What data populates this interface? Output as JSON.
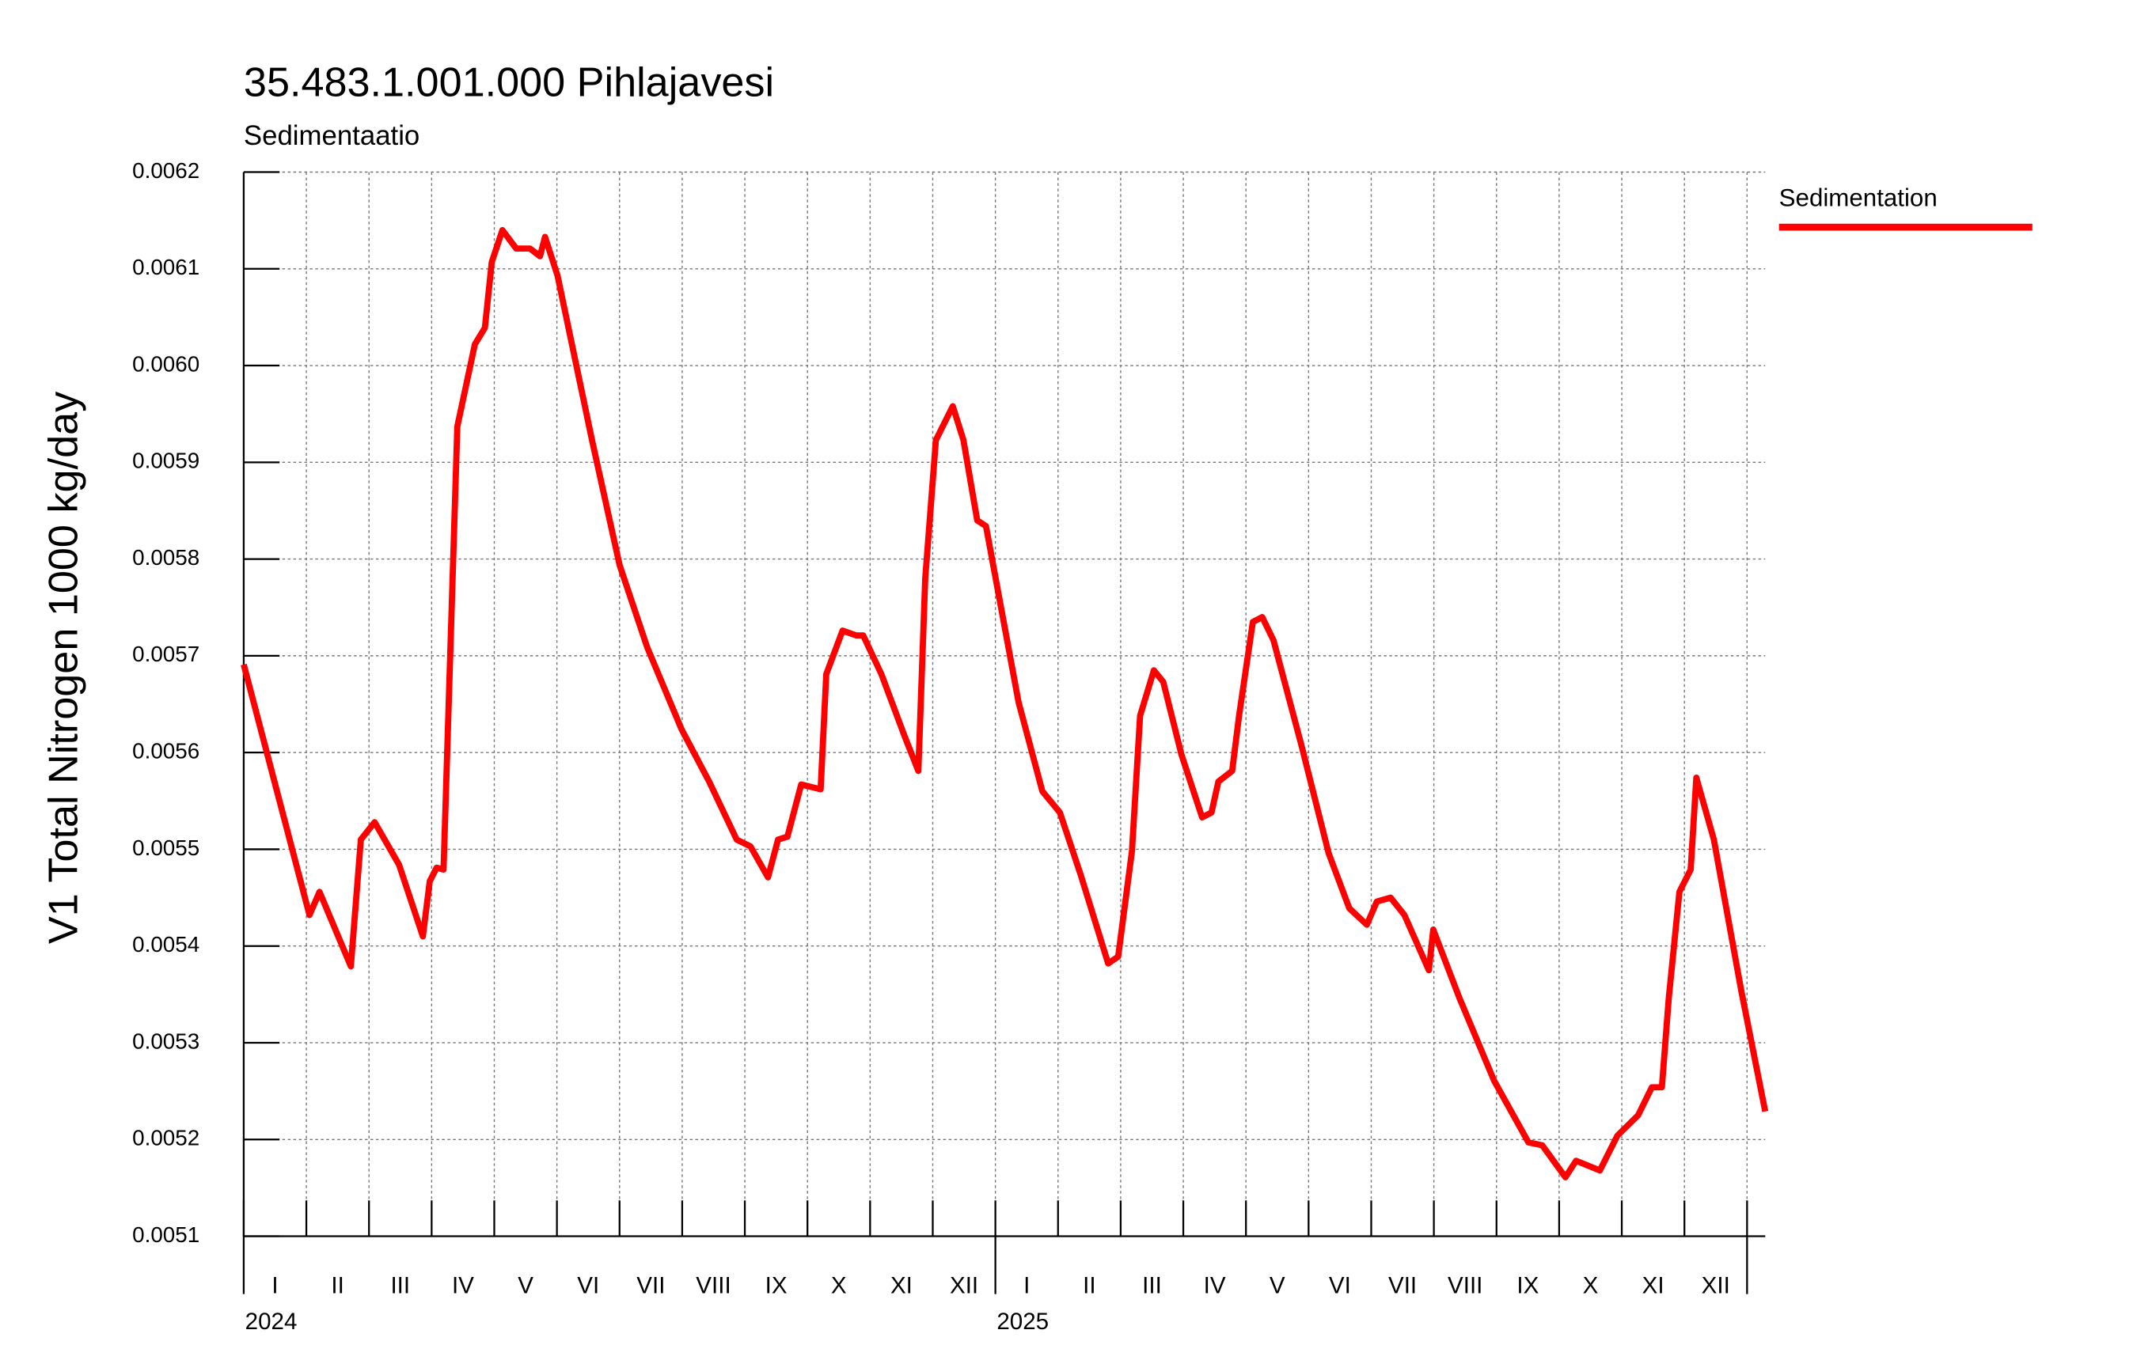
{
  "chart_data": {
    "type": "line",
    "title": "35.483.1.001.000 Pihlajavesi",
    "subtitle": "Sedimentaatio",
    "y_label": "V1 Total Nitrogen 1000 kg/day",
    "legend_position": "top-right-outside",
    "grid": true,
    "xlim": [
      0,
      24.29
    ],
    "xticks": [
      0,
      1,
      2,
      3,
      4,
      5,
      6,
      7,
      8,
      9,
      10,
      11,
      12,
      13,
      14,
      15,
      16,
      17,
      18,
      19,
      20,
      21,
      22,
      23,
      24
    ],
    "month_labels": [
      "I",
      "II",
      "III",
      "IV",
      "V",
      "VI",
      "VII",
      "VIII",
      "IX",
      "X",
      "XI",
      "XII",
      "I",
      "II",
      "III",
      "IV",
      "V",
      "VI",
      "VII",
      "VIII",
      "IX",
      "X",
      "XI",
      "XII"
    ],
    "year_labels": [
      {
        "value": 0,
        "label": "2024"
      },
      {
        "value": 12,
        "label": "2025"
      }
    ],
    "ylim": [
      0.0051,
      0.0062
    ],
    "yticks": [
      0.0051,
      0.0052,
      0.0053,
      0.0054,
      0.0055,
      0.0056,
      0.0057,
      0.0058,
      0.0059,
      {
        "value": 0.006,
        "label": "0.0060"
      },
      0.0061,
      0.0062
    ],
    "x": [
      0,
      1.05,
      1.21,
      1.71,
      1.87,
      2.09,
      2.48,
      2.86,
      2.97,
      3.08,
      3.19,
      3.41,
      3.69,
      3.85,
      3.96,
      4.13,
      4.35,
      4.57,
      4.73,
      4.81,
      5.01,
      5.56,
      6.0,
      6.44,
      6.99,
      7.43,
      7.87,
      8.09,
      8.37,
      8.53,
      8.68,
      8.9,
      9.21,
      9.3,
      9.56,
      9.78,
      9.89,
      10.18,
      10.55,
      10.77,
      10.88,
      11.05,
      11.32,
      11.49,
      11.71,
      11.85,
      12.37,
      12.75,
      13.03,
      13.36,
      13.8,
      13.96,
      14.18,
      14.31,
      14.53,
      14.68,
      14.97,
      15.3,
      15.45,
      15.56,
      15.78,
      15.89,
      16.11,
      16.26,
      16.44,
      16.88,
      17.32,
      17.65,
      17.93,
      18.09,
      18.31,
      18.53,
      18.92,
      18.99,
      19.41,
      19.96,
      20.51,
      20.73,
      21.1,
      21.27,
      21.65,
      21.93,
      22.26,
      22.48,
      22.64,
      22.75,
      22.92,
      23.1,
      23.19,
      23.47,
      23.91,
      24.29
    ],
    "series": [
      {
        "name": "Sedimentation",
        "color": "#ff0000",
        "values": [
          0.005691,
          0.005432,
          0.005456,
          0.005379,
          0.00551,
          0.005528,
          0.005484,
          0.00541,
          0.005467,
          0.005481,
          0.005479,
          0.005937,
          0.006022,
          0.006039,
          0.006107,
          0.00614,
          0.006121,
          0.006121,
          0.006113,
          0.006133,
          0.006093,
          0.005923,
          0.005794,
          0.005709,
          0.005624,
          0.00557,
          0.00551,
          0.005503,
          0.005471,
          0.00551,
          0.005513,
          0.005567,
          0.005562,
          0.005681,
          0.005726,
          0.005721,
          0.005721,
          0.005681,
          0.005617,
          0.005581,
          0.00578,
          0.005923,
          0.005958,
          0.005923,
          0.00584,
          0.005834,
          0.005652,
          0.00556,
          0.005538,
          0.005474,
          0.005382,
          0.005389,
          0.005498,
          0.005638,
          0.005685,
          0.005673,
          0.005598,
          0.005533,
          0.005538,
          0.00557,
          0.005581,
          0.005638,
          0.005735,
          0.00574,
          0.005716,
          0.005609,
          0.005496,
          0.005439,
          0.005422,
          0.005446,
          0.00545,
          0.005432,
          0.005375,
          0.005417,
          0.005346,
          0.005261,
          0.005197,
          0.005194,
          0.005161,
          0.005178,
          0.005168,
          0.005204,
          0.005225,
          0.005254,
          0.005254,
          0.005346,
          0.005456,
          0.005479,
          0.005574,
          0.00551,
          0.005353,
          0.005229
        ]
      }
    ]
  }
}
